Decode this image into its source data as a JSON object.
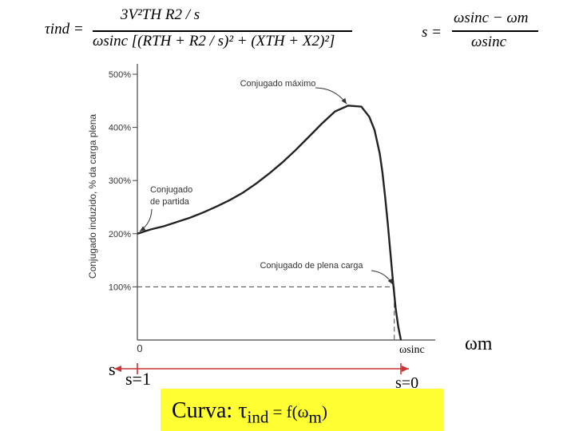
{
  "formulas": {
    "torque": {
      "lhs": "τind =",
      "numerator": "3V²TH R2 / s",
      "denominator": "ωsinc [(RTH + R2 / s)² + (XTH + X2)²]"
    },
    "slip": {
      "lhs": "s =",
      "numerator": "ωsinc − ωm",
      "denominator": "ωsinc"
    }
  },
  "chart_data": {
    "type": "line",
    "ylabel": "Conjugado induzido, % da carga plena",
    "ylim": [
      0,
      500
    ],
    "yticks": [
      "500%",
      "400%",
      "300%",
      "200%",
      "100%"
    ],
    "ytick_values": [
      500,
      400,
      300,
      200,
      100
    ],
    "x_origin_label": "0",
    "x_sync_label": "ωsinc",
    "x_axis_label": "ωm",
    "xlim": [
      0,
      1
    ],
    "grid": false,
    "series": [
      {
        "x": [
          0,
          0.05,
          0.1,
          0.15,
          0.2,
          0.25,
          0.3,
          0.35,
          0.4,
          0.45,
          0.5,
          0.55,
          0.6,
          0.65,
          0.7,
          0.75,
          0.8,
          0.85,
          0.88,
          0.9,
          0.92,
          0.93,
          0.94,
          0.95,
          0.96,
          0.97,
          0.98,
          0.99,
          1.0
        ],
        "y": [
          200,
          208,
          214,
          222,
          230,
          240,
          251,
          263,
          277,
          294,
          313,
          334,
          357,
          382,
          407,
          430,
          441,
          439,
          420,
          395,
          350,
          315,
          270,
          220,
          165,
          110,
          60,
          25,
          0
        ]
      }
    ],
    "annotations": [
      {
        "text": "Conjugado máximo",
        "x": 0.8,
        "y": 441
      },
      {
        "text": "Conjugado de partida",
        "x": 0,
        "y": 200
      },
      {
        "text": "Conjugado de plena carga",
        "x": 0.975,
        "y": 100
      }
    ],
    "slip_axis": {
      "label": "s",
      "start": "s=1",
      "end": "s=0"
    }
  },
  "caption": {
    "prefix": "Curva: ",
    "tau": "τ",
    "sub": "ind",
    "rest": " = f(ω",
    "sub2": "m",
    "close": ")"
  },
  "colors": {
    "curve": "#222222",
    "axis": "#444444",
    "slip_arrow": "#cc3333",
    "caption_bg": "#ffff33"
  }
}
